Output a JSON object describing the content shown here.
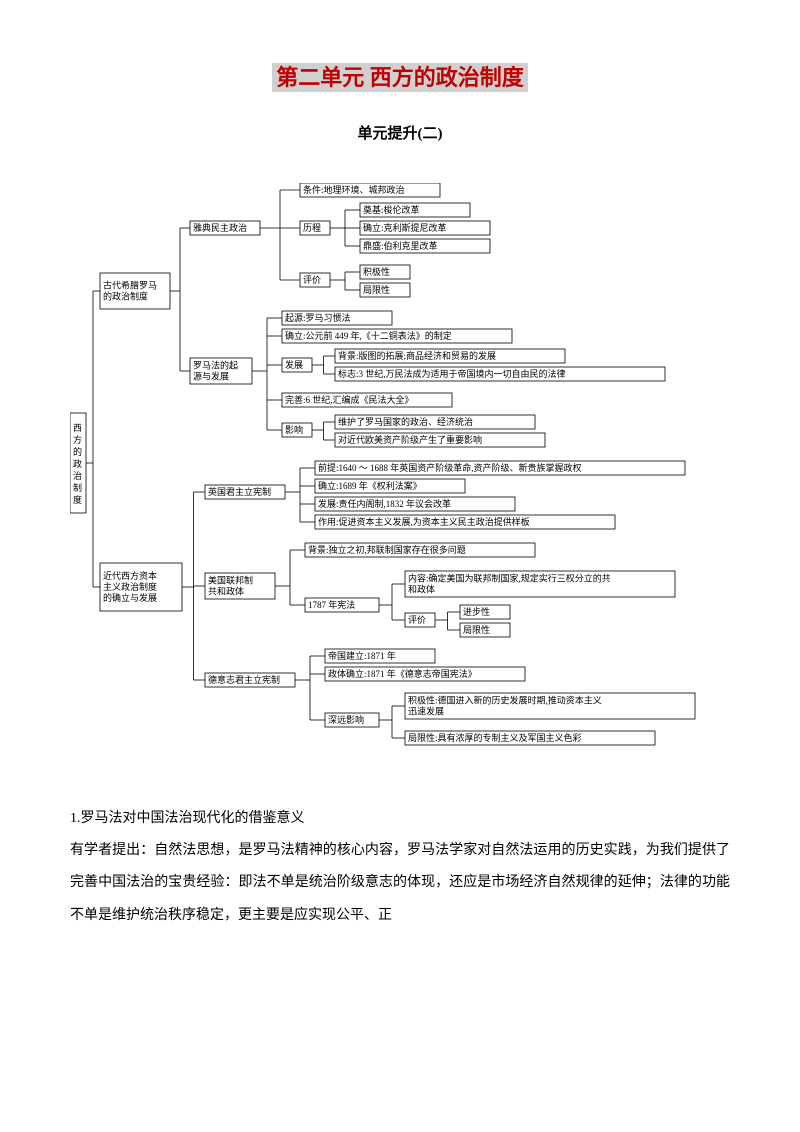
{
  "title": "第二单元 西方的政治制度",
  "subtitle": "单元提升(二)",
  "diagram": {
    "root": "西方的政治制度",
    "font_size": 9,
    "line_color": "#000000",
    "box_border": "#000000",
    "box_bg": "#ffffff",
    "a": {
      "label": "古代希腊罗马的政治制度",
      "a1": {
        "label": "雅典民主政治",
        "cond": "条件:地理环境、城邦政治",
        "proc_label": "历程",
        "p1": "奠基:梭伦改革",
        "p2": "确立:克利斯提尼改革",
        "p3": "鼎盛:伯利克里改革",
        "eval_label": "评价",
        "e1": "积极性",
        "e2": "局限性"
      },
      "a2": {
        "label": "罗马法的起源与发展",
        "origin": "起源:罗马习惯法",
        "establish": "确立:公元前 449 年,《十二铜表法》的制定",
        "dev_label": "发展",
        "d1": "背景:版图的拓展;商品经济和贸易的发展",
        "d2": "标志:3 世纪,万民法成为适用于帝国境内一切自由民的法律",
        "perfect": "完善:6 世纪,汇编成《民法大全》",
        "inf_label": "影响",
        "i1": "维护了罗马国家的政治、经济统治",
        "i2": "对近代欧美资产阶级产生了重要影响"
      }
    },
    "b": {
      "label": "近代西方资本主义政治制度的确立与发展",
      "b1": {
        "label": "英国君主立宪制",
        "r1": "前提:1640 ～ 1688 年英国资产阶级革命,资产阶级、新贵族掌握政权",
        "r2": "确立:1689 年《权利法案》",
        "r3": "发展:责任内阁制,1832 年议会改革",
        "r4": "作用:促进资本主义发展,为资本主义民主政治提供样板"
      },
      "b2": {
        "label": "美国联邦制共和政体",
        "bg": "背景:独立之初,邦联制国家存在很多问题",
        "c_label": "1787 年宪法",
        "content": "内容:确定美国为联邦制国家,规定实行三权分立的共和政体",
        "eval_label": "评价",
        "e1": "进步性",
        "e2": "局限性"
      },
      "b3": {
        "label": "德意志君主立宪制",
        "r1": "帝国建立:1871 年",
        "r2": "政体确立:1871 年《德意志帝国宪法》",
        "inf_label": "深远影响",
        "i1": "积极性:德国进入新的历史发展时期,推动资本主义迅速发展",
        "i2": "局限性:具有浓厚的专制主义及军国主义色彩"
      }
    }
  },
  "para_lead": "1.罗马法对中国法治现代化的借鉴意义",
  "para_body": "有学者提出：自然法思想，是罗马法精神的核心内容，罗马法学家对自然法运用的历史实践，为我们提供了完善中国法治的宝贵经验：即法不单是统治阶级意志的体现，还应是市场经济自然规律的延伸；法律的功能不单是维护统治秩序稳定，更主要是应实现公平、正"
}
